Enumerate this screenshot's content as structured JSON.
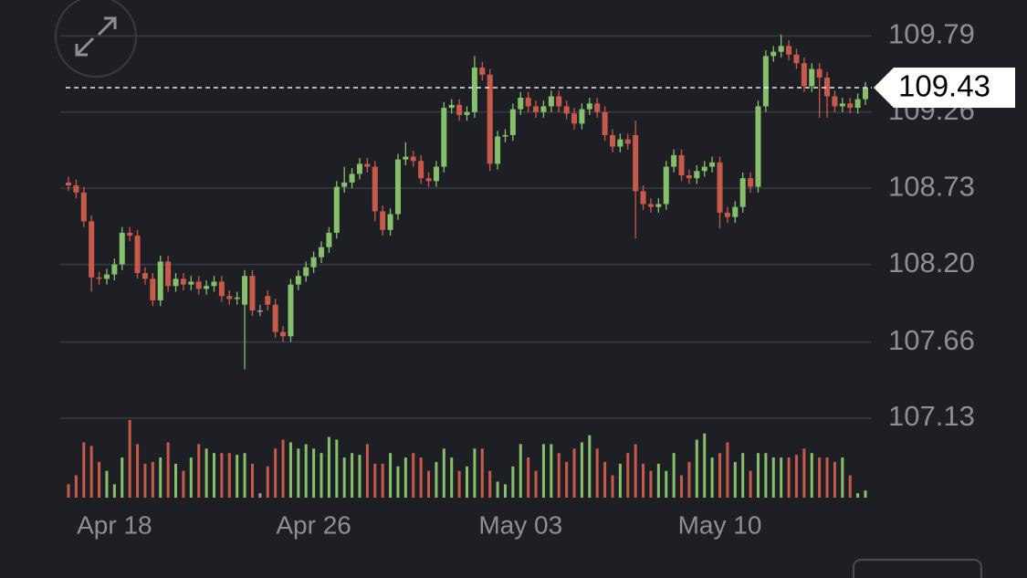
{
  "chart_data": {
    "type": "candlestick",
    "categories": [
      null,
      null,
      null,
      null,
      null,
      null,
      "Apr 18",
      null,
      null,
      null,
      null,
      null,
      null,
      null,
      null,
      null,
      null,
      null,
      null,
      null,
      null,
      null,
      null,
      null,
      null,
      null,
      null,
      null,
      null,
      null,
      null,
      null,
      "Apr 26",
      null,
      null,
      null,
      null,
      null,
      null,
      null,
      null,
      null,
      null,
      null,
      null,
      null,
      null,
      null,
      null,
      null,
      null,
      null,
      null,
      null,
      null,
      null,
      null,
      null,
      null,
      "May 03",
      null,
      null,
      null,
      null,
      null,
      null,
      null,
      null,
      null,
      null,
      null,
      null,
      null,
      null,
      null,
      null,
      null,
      null,
      null,
      null,
      null,
      null,
      null,
      null,
      null,
      "May 10",
      null,
      null,
      null,
      null,
      null,
      null,
      null,
      null,
      null,
      null,
      null,
      null,
      null,
      null,
      null,
      null,
      null,
      null,
      null
    ],
    "open": [
      108.77,
      108.75,
      108.7,
      108.5,
      108.11,
      108.1,
      108.13,
      108.2,
      108.42,
      108.4,
      108.14,
      108.1,
      107.95,
      108.22,
      108.05,
      108.1,
      108.06,
      108.08,
      108.03,
      108.05,
      108.08,
      107.98,
      107.96,
      107.92,
      108.12,
      107.88,
      107.98,
      107.92,
      107.73,
      107.7,
      108.06,
      108.12,
      108.18,
      108.25,
      108.32,
      108.42,
      108.74,
      108.77,
      108.83,
      108.9,
      108.88,
      108.57,
      108.44,
      108.55,
      108.93,
      108.95,
      108.92,
      108.8,
      108.78,
      108.88,
      109.29,
      109.31,
      109.24,
      109.26,
      109.57,
      109.52,
      108.9,
      109.09,
      109.1,
      109.28,
      109.36,
      109.3,
      109.26,
      109.3,
      109.37,
      109.3,
      109.25,
      109.18,
      109.28,
      109.32,
      109.26,
      109.1,
      109.02,
      109.07,
      109.1,
      108.71,
      108.62,
      108.6,
      108.62,
      108.88,
      108.96,
      108.82,
      108.8,
      108.85,
      108.88,
      108.91,
      108.56,
      108.53,
      108.6,
      108.8,
      108.74,
      109.3,
      109.65,
      109.68,
      109.72,
      109.66,
      109.6,
      109.44,
      109.56,
      109.5,
      109.37,
      109.3,
      109.32,
      109.29,
      109.35
    ],
    "high": [
      108.81,
      108.79,
      108.74,
      108.54,
      108.15,
      108.17,
      108.24,
      108.46,
      108.46,
      108.44,
      108.18,
      108.14,
      108.26,
      108.26,
      108.14,
      108.14,
      108.12,
      108.12,
      108.09,
      108.12,
      108.12,
      108.02,
      108.01,
      108.16,
      108.16,
      107.92,
      108.02,
      107.96,
      107.77,
      108.1,
      108.16,
      108.22,
      108.29,
      108.36,
      108.46,
      108.78,
      108.88,
      108.87,
      108.94,
      108.94,
      108.92,
      108.61,
      108.59,
      108.97,
      109.05,
      108.99,
      108.96,
      108.84,
      108.92,
      109.33,
      109.35,
      109.35,
      109.3,
      109.65,
      109.61,
      109.56,
      109.13,
      109.14,
      109.32,
      109.4,
      109.4,
      109.34,
      109.34,
      109.41,
      109.41,
      109.34,
      109.29,
      109.32,
      109.36,
      109.36,
      109.3,
      109.14,
      109.11,
      109.11,
      109.2,
      108.75,
      108.66,
      108.66,
      108.92,
      109.0,
      109.0,
      108.86,
      108.89,
      108.92,
      108.95,
      108.95,
      108.6,
      108.64,
      108.84,
      108.84,
      109.34,
      109.69,
      109.72,
      109.8,
      109.76,
      109.7,
      109.64,
      109.6,
      109.6,
      109.54,
      109.41,
      109.36,
      109.36,
      109.39,
      109.47
    ],
    "low": [
      108.71,
      108.66,
      108.46,
      108.01,
      108.06,
      108.06,
      108.09,
      108.16,
      108.36,
      108.1,
      108.06,
      107.91,
      107.91,
      108.01,
      108.01,
      108.02,
      108.02,
      107.99,
      107.99,
      108.01,
      107.94,
      107.92,
      107.92,
      107.47,
      107.84,
      107.84,
      107.88,
      107.69,
      107.66,
      107.66,
      108.02,
      108.08,
      108.14,
      108.21,
      108.28,
      108.38,
      108.7,
      108.73,
      108.79,
      108.84,
      108.5,
      108.4,
      108.4,
      108.51,
      108.89,
      108.88,
      108.76,
      108.74,
      108.74,
      108.84,
      109.25,
      109.2,
      109.2,
      109.22,
      109.48,
      108.85,
      108.86,
      109.05,
      109.06,
      109.24,
      109.26,
      109.22,
      109.22,
      109.26,
      109.26,
      109.21,
      109.14,
      109.14,
      109.24,
      109.22,
      109.06,
      108.98,
      108.98,
      109.0,
      108.38,
      108.58,
      108.56,
      108.56,
      108.58,
      108.84,
      108.78,
      108.76,
      108.76,
      108.81,
      108.84,
      108.45,
      108.49,
      108.49,
      108.56,
      108.7,
      108.7,
      109.26,
      109.61,
      109.64,
      109.62,
      109.56,
      109.4,
      109.4,
      109.22,
      109.22,
      109.26,
      109.26,
      109.25,
      109.25,
      109.31
    ],
    "close": [
      108.75,
      108.7,
      108.5,
      108.11,
      108.1,
      108.13,
      108.2,
      108.42,
      108.4,
      108.14,
      108.1,
      107.95,
      108.22,
      108.05,
      108.1,
      108.06,
      108.08,
      108.03,
      108.05,
      108.08,
      107.98,
      107.96,
      107.97,
      108.12,
      107.88,
      107.88,
      107.92,
      107.73,
      107.7,
      108.06,
      108.12,
      108.18,
      108.25,
      108.32,
      108.42,
      108.74,
      108.77,
      108.83,
      108.9,
      108.88,
      108.57,
      108.44,
      108.55,
      108.93,
      108.95,
      108.92,
      108.8,
      108.78,
      108.88,
      109.29,
      109.31,
      109.24,
      109.26,
      109.57,
      109.52,
      108.9,
      109.09,
      109.1,
      109.28,
      109.36,
      109.3,
      109.26,
      109.3,
      109.37,
      109.3,
      109.25,
      109.18,
      109.28,
      109.32,
      109.26,
      109.1,
      109.02,
      109.07,
      109.04,
      108.71,
      108.62,
      108.6,
      108.62,
      108.88,
      108.96,
      108.82,
      108.8,
      108.85,
      108.88,
      108.91,
      108.56,
      108.53,
      108.6,
      108.8,
      108.74,
      109.3,
      109.65,
      109.68,
      109.72,
      109.66,
      109.6,
      109.44,
      109.56,
      109.5,
      109.37,
      109.3,
      109.32,
      109.29,
      109.35,
      109.43
    ],
    "volume": [
      15,
      25,
      62,
      58,
      40,
      30,
      15,
      45,
      87,
      60,
      38,
      40,
      45,
      62,
      38,
      30,
      45,
      60,
      55,
      50,
      50,
      50,
      48,
      50,
      38,
      5,
      35,
      55,
      65,
      62,
      55,
      60,
      55,
      50,
      68,
      65,
      45,
      50,
      48,
      60,
      38,
      38,
      50,
      35,
      45,
      50,
      45,
      30,
      40,
      55,
      45,
      30,
      35,
      55,
      55,
      30,
      18,
      15,
      35,
      60,
      45,
      30,
      60,
      60,
      50,
      40,
      55,
      62,
      70,
      55,
      40,
      25,
      38,
      50,
      60,
      38,
      30,
      38,
      30,
      50,
      25,
      40,
      65,
      72,
      45,
      50,
      62,
      40,
      50,
      30,
      50,
      50,
      45,
      45,
      45,
      48,
      55,
      50,
      45,
      45,
      40,
      45,
      25,
      5,
      8
    ],
    "ylim": [
      107.13,
      110.04
    ],
    "yticks": [
      107.13,
      107.66,
      {
        "value": 108.2,
        "label": "108.20"
      },
      108.73,
      109.26,
      109.79
    ],
    "last_price": 109.43,
    "grid": true,
    "colors": {
      "up": "#86c06a",
      "down": "#c85a4c",
      "flat": "#9a9a9e"
    }
  }
}
